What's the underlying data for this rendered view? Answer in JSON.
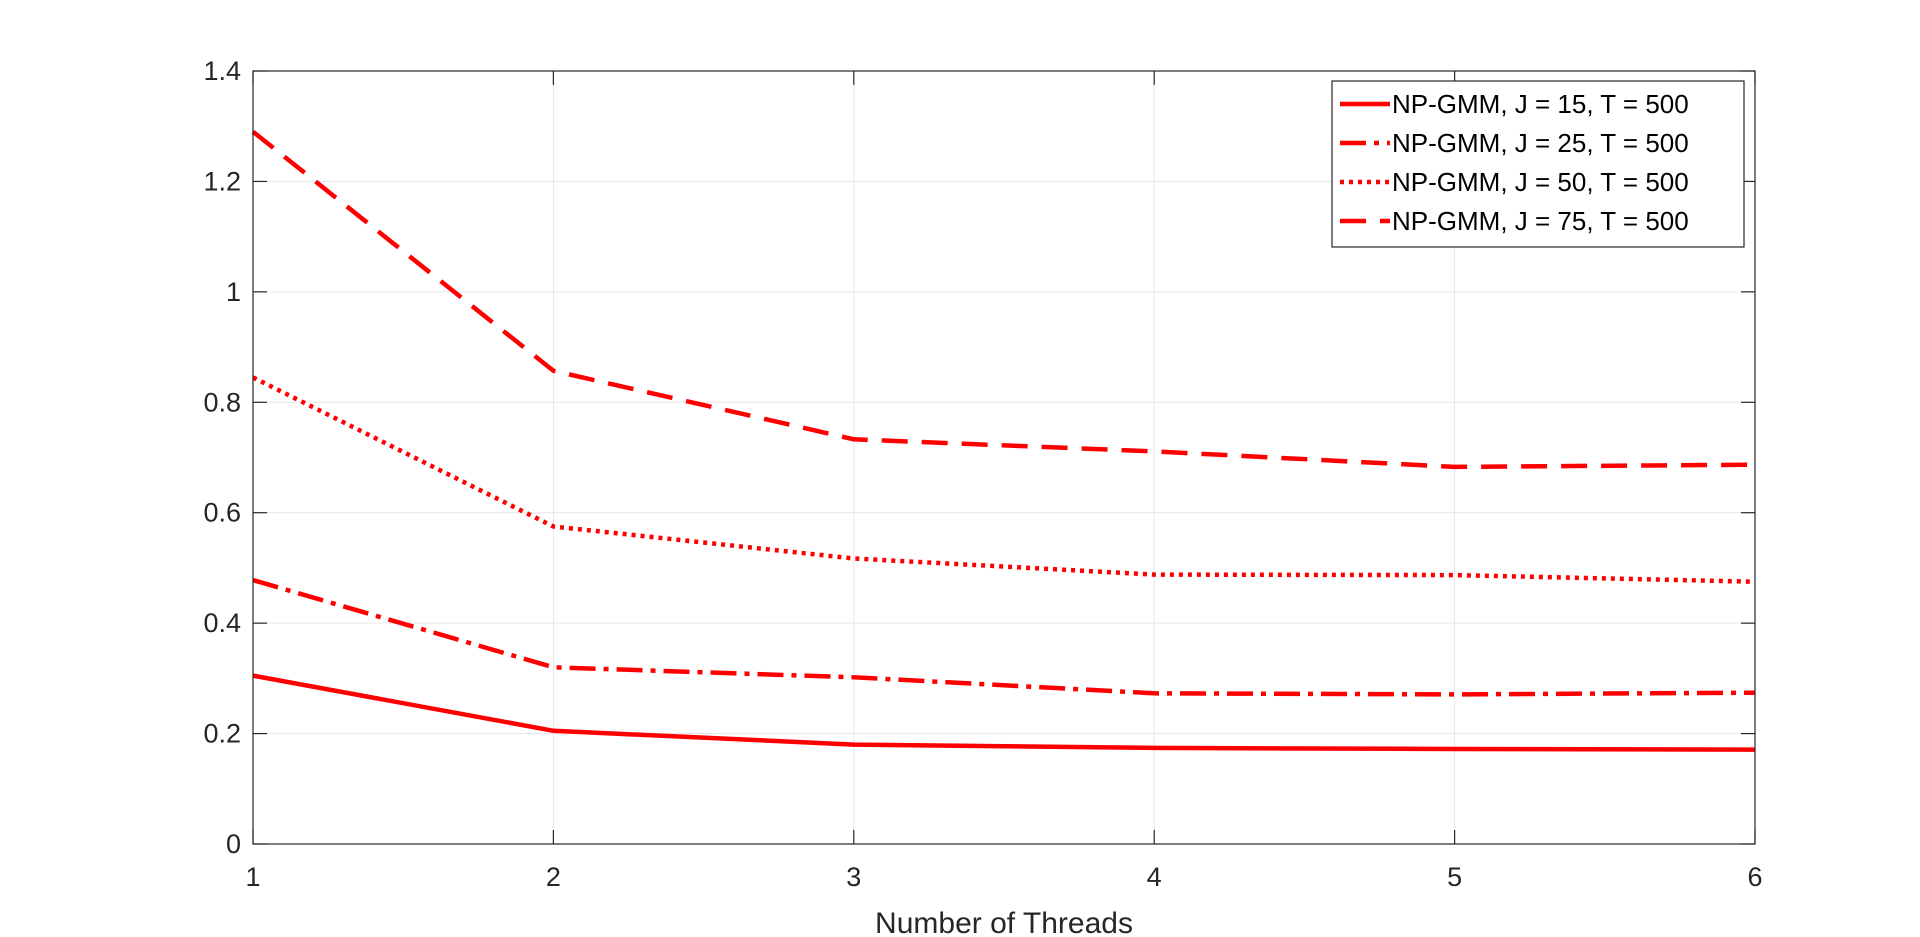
{
  "chart_data": {
    "type": "line",
    "title": "",
    "xlabel": "Number of Threads",
    "ylabel": "",
    "x": [
      1,
      2,
      3,
      4,
      5,
      6
    ],
    "xlim": [
      1,
      6
    ],
    "ylim": [
      0,
      1.4
    ],
    "xticks": [
      "1",
      "2",
      "3",
      "4",
      "5",
      "6"
    ],
    "yticks": [
      "0",
      "0.2",
      "0.4",
      "0.6",
      "0.8",
      "1",
      "1.2",
      "1.4"
    ],
    "grid": true,
    "legend_position": "top-right",
    "color": "#ff0000",
    "series": [
      {
        "name": "NP-GMM, J = 15, T = 500",
        "style": "solid",
        "values": [
          0.305,
          0.205,
          0.18,
          0.174,
          0.172,
          0.171
        ]
      },
      {
        "name": "NP-GMM, J = 25, T = 500",
        "style": "dash-dot",
        "values": [
          0.478,
          0.32,
          0.302,
          0.273,
          0.271,
          0.274
        ]
      },
      {
        "name": "NP-GMM, J = 50, T = 500",
        "style": "dotted",
        "values": [
          0.845,
          0.575,
          0.517,
          0.488,
          0.487,
          0.475
        ]
      },
      {
        "name": "NP-GMM, J = 75, T = 500",
        "style": "dashed",
        "values": [
          1.29,
          0.857,
          0.733,
          0.711,
          0.683,
          0.687
        ]
      }
    ]
  }
}
